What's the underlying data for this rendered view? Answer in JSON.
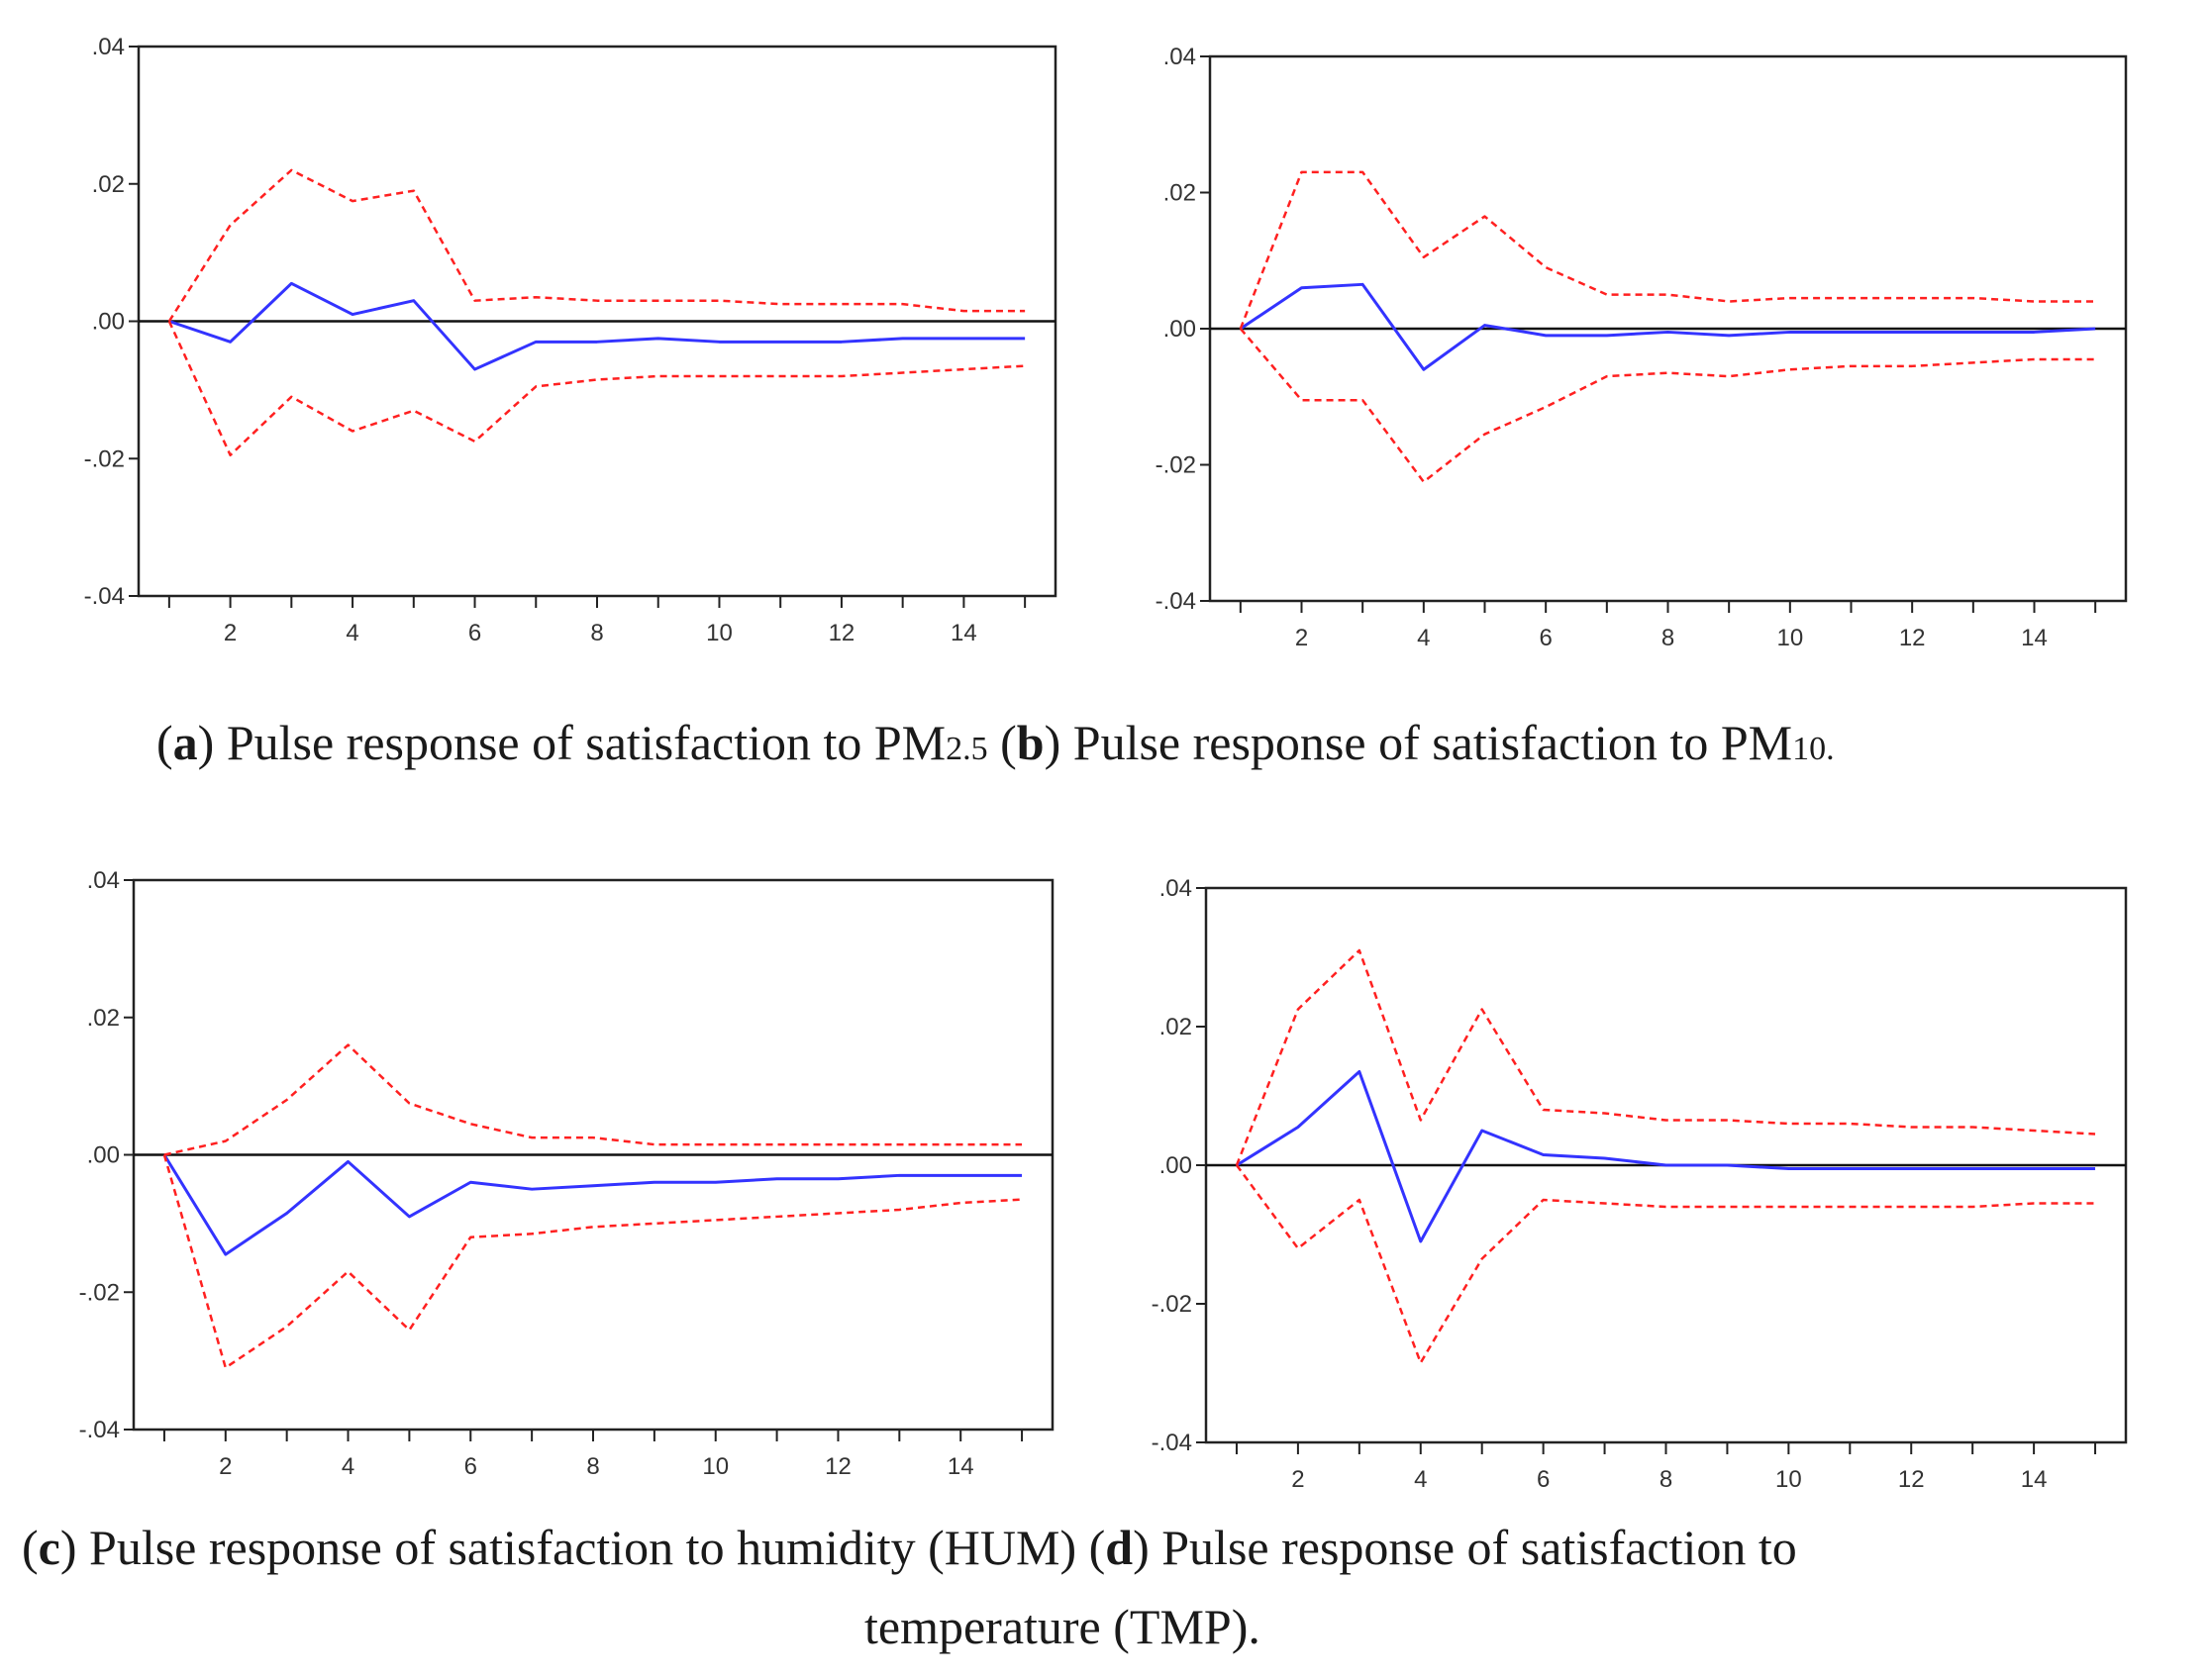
{
  "chart_data": [
    {
      "type": "line",
      "id": "a",
      "x": [
        1,
        2,
        3,
        4,
        5,
        6,
        7,
        8,
        9,
        10,
        11,
        12,
        13,
        14,
        15
      ],
      "xticks": [
        "2",
        "4",
        "6",
        "8",
        "10",
        "12",
        "14"
      ],
      "yticks": [
        ".04",
        ".02",
        ".00",
        "-.02",
        "-.04"
      ],
      "ylim": [
        -0.04,
        0.04
      ],
      "xlim": [
        0.5,
        15.5
      ],
      "series": [
        {
          "name": "response",
          "color": "#3333ff",
          "style": "solid",
          "values": [
            0.0,
            -0.003,
            0.0055,
            0.001,
            0.003,
            -0.007,
            -0.003,
            -0.003,
            -0.0025,
            -0.003,
            -0.003,
            -0.003,
            -0.0025,
            -0.0025,
            -0.0025
          ]
        },
        {
          "name": "upper band",
          "color": "#ff2020",
          "style": "dashed",
          "values": [
            0.0,
            0.014,
            0.022,
            0.0175,
            0.019,
            0.003,
            0.0035,
            0.003,
            0.003,
            0.003,
            0.0025,
            0.0025,
            0.0025,
            0.0015,
            0.0015
          ]
        },
        {
          "name": "lower band",
          "color": "#ff2020",
          "style": "dashed",
          "values": [
            0.0,
            -0.0195,
            -0.011,
            -0.016,
            -0.013,
            -0.0175,
            -0.0095,
            -0.0085,
            -0.008,
            -0.008,
            -0.008,
            -0.008,
            -0.0075,
            -0.007,
            -0.0065
          ]
        }
      ]
    },
    {
      "type": "line",
      "id": "b",
      "x": [
        1,
        2,
        3,
        4,
        5,
        6,
        7,
        8,
        9,
        10,
        11,
        12,
        13,
        14,
        15
      ],
      "xticks": [
        "2",
        "4",
        "6",
        "8",
        "10",
        "12",
        "14"
      ],
      "yticks": [
        ".04",
        ".02",
        ".00",
        "-.02",
        "-.04"
      ],
      "ylim": [
        -0.04,
        0.04
      ],
      "xlim": [
        0.5,
        15.5
      ],
      "series": [
        {
          "name": "response",
          "color": "#3333ff",
          "style": "solid",
          "values": [
            0.0,
            0.006,
            0.0065,
            -0.006,
            0.0005,
            -0.001,
            -0.001,
            -0.0005,
            -0.001,
            -0.0005,
            -0.0005,
            -0.0005,
            -0.0005,
            -0.0005,
            0.0
          ]
        },
        {
          "name": "upper band",
          "color": "#ff2020",
          "style": "dashed",
          "values": [
            0.0,
            0.023,
            0.023,
            0.0105,
            0.0165,
            0.009,
            0.005,
            0.005,
            0.004,
            0.0045,
            0.0045,
            0.0045,
            0.0045,
            0.004,
            0.004
          ]
        },
        {
          "name": "lower band",
          "color": "#ff2020",
          "style": "dashed",
          "values": [
            0.0,
            -0.0105,
            -0.0105,
            -0.0225,
            -0.0155,
            -0.0115,
            -0.007,
            -0.0065,
            -0.007,
            -0.006,
            -0.0055,
            -0.0055,
            -0.005,
            -0.0045,
            -0.0045
          ]
        }
      ]
    },
    {
      "type": "line",
      "id": "c",
      "x": [
        1,
        2,
        3,
        4,
        5,
        6,
        7,
        8,
        9,
        10,
        11,
        12,
        13,
        14,
        15
      ],
      "xticks": [
        "2",
        "4",
        "6",
        "8",
        "10",
        "12",
        "14"
      ],
      "yticks": [
        ".04",
        ".02",
        ".00",
        "-.02",
        "-.04"
      ],
      "ylim": [
        -0.04,
        0.04
      ],
      "xlim": [
        0.5,
        15.5
      ],
      "series": [
        {
          "name": "response",
          "color": "#3333ff",
          "style": "solid",
          "values": [
            0.0,
            -0.0145,
            -0.0085,
            -0.001,
            -0.009,
            -0.004,
            -0.005,
            -0.0045,
            -0.004,
            -0.004,
            -0.0035,
            -0.0035,
            -0.003,
            -0.003,
            -0.003
          ]
        },
        {
          "name": "upper band",
          "color": "#ff2020",
          "style": "dashed",
          "values": [
            0.0,
            0.002,
            0.008,
            0.016,
            0.0075,
            0.0045,
            0.0025,
            0.0025,
            0.0015,
            0.0015,
            0.0015,
            0.0015,
            0.0015,
            0.0015,
            0.0015
          ]
        },
        {
          "name": "lower band",
          "color": "#ff2020",
          "style": "dashed",
          "values": [
            0.0,
            -0.031,
            -0.025,
            -0.017,
            -0.0255,
            -0.012,
            -0.0115,
            -0.0105,
            -0.01,
            -0.0095,
            -0.009,
            -0.0085,
            -0.008,
            -0.007,
            -0.0065
          ]
        }
      ]
    },
    {
      "type": "line",
      "id": "d",
      "x": [
        1,
        2,
        3,
        4,
        5,
        6,
        7,
        8,
        9,
        10,
        11,
        12,
        13,
        14,
        15
      ],
      "xticks": [
        "2",
        "4",
        "6",
        "8",
        "10",
        "12",
        "14"
      ],
      "yticks": [
        ".04",
        ".02",
        ".00",
        "-.02",
        "-.04"
      ],
      "ylim": [
        -0.04,
        0.04
      ],
      "xlim": [
        0.5,
        15.5
      ],
      "series": [
        {
          "name": "response",
          "color": "#3333ff",
          "style": "solid",
          "values": [
            0.0,
            0.0055,
            0.0135,
            -0.011,
            0.005,
            0.0015,
            0.001,
            0.0,
            0.0,
            -0.0005,
            -0.0005,
            -0.0005,
            -0.0005,
            -0.0005,
            -0.0005
          ]
        },
        {
          "name": "upper band",
          "color": "#ff2020",
          "style": "dashed",
          "values": [
            0.0,
            0.0225,
            0.031,
            0.0065,
            0.0225,
            0.008,
            0.0075,
            0.0065,
            0.0065,
            0.006,
            0.006,
            0.0055,
            0.0055,
            0.005,
            0.0045
          ]
        },
        {
          "name": "lower band",
          "color": "#ff2020",
          "style": "dashed",
          "values": [
            0.0,
            -0.012,
            -0.005,
            -0.0285,
            -0.0135,
            -0.005,
            -0.0055,
            -0.006,
            -0.006,
            -0.006,
            -0.006,
            -0.006,
            -0.006,
            -0.0055,
            -0.0055
          ]
        }
      ]
    }
  ],
  "captions": {
    "row1": {
      "a_letter": "a",
      "a_text": " Pulse response of satisfaction to PM",
      "a_sub": "2.5",
      "b_letter": "b",
      "b_text": " Pulse response of satisfaction to PM",
      "b_sub": "10."
    },
    "row2": {
      "c_letter": "c",
      "c_text": " Pulse response of satisfaction to humidity (HUM) ",
      "d_letter": "d",
      "d_text": " Pulse response of satisfaction to",
      "line2": "temperature (TMP)."
    }
  }
}
